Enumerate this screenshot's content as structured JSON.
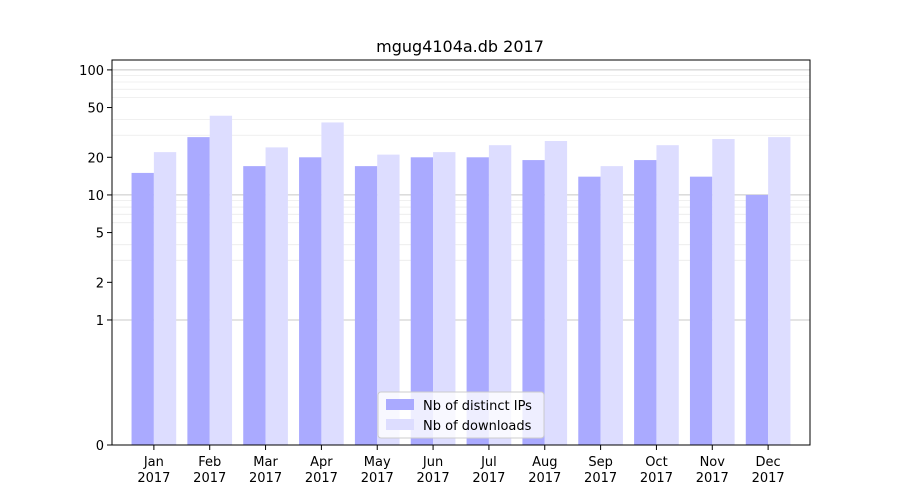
{
  "chart_data": {
    "type": "bar",
    "title": "mgug4104a.db 2017",
    "xlabel": "",
    "ylabel": "",
    "yscale": "symlog",
    "ylim": [
      0,
      120
    ],
    "yticks": [
      0,
      1,
      2,
      5,
      10,
      20,
      50,
      100
    ],
    "ytick_labels": [
      "0",
      "1",
      "2",
      "5",
      "10",
      "20",
      "50",
      "100"
    ],
    "categories": [
      "Jan\n2017",
      "Feb\n2017",
      "Mar\n2017",
      "Apr\n2017",
      "May\n2017",
      "Jun\n2017",
      "Jul\n2017",
      "Aug\n2017",
      "Sep\n2017",
      "Oct\n2017",
      "Nov\n2017",
      "Dec\n2017"
    ],
    "category_labels": [
      [
        "Jan",
        "2017"
      ],
      [
        "Feb",
        "2017"
      ],
      [
        "Mar",
        "2017"
      ],
      [
        "Apr",
        "2017"
      ],
      [
        "May",
        "2017"
      ],
      [
        "Jun",
        "2017"
      ],
      [
        "Jul",
        "2017"
      ],
      [
        "Aug",
        "2017"
      ],
      [
        "Sep",
        "2017"
      ],
      [
        "Oct",
        "2017"
      ],
      [
        "Nov",
        "2017"
      ],
      [
        "Dec",
        "2017"
      ]
    ],
    "series": [
      {
        "name": "Nb of distinct IPs",
        "color": "#aaaaff",
        "values": [
          15,
          29,
          17,
          20,
          17,
          20,
          20,
          19,
          14,
          19,
          14,
          10
        ]
      },
      {
        "name": "Nb of downloads",
        "color": "#ddddff",
        "values": [
          22,
          43,
          24,
          38,
          21,
          22,
          25,
          27,
          17,
          25,
          28,
          29
        ]
      }
    ],
    "legend_position": "lower center",
    "grid": true
  }
}
